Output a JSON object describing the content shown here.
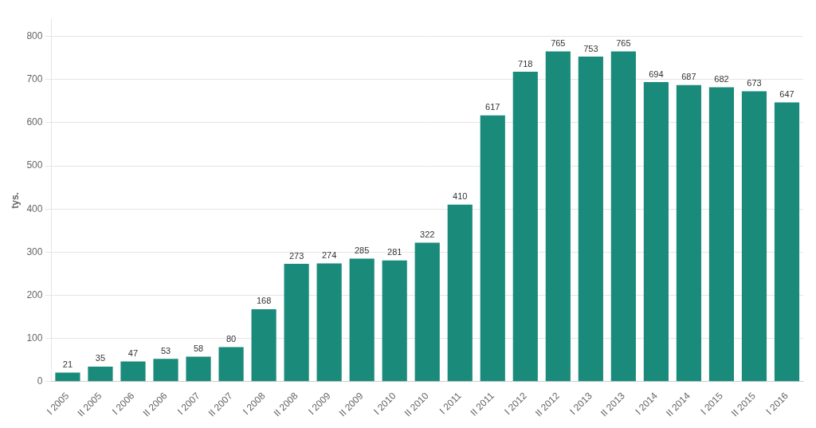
{
  "chart_data": {
    "type": "bar",
    "categories": [
      "I 2005",
      "II 2005",
      "I 2006",
      "II 2006",
      "I 2007",
      "II 2007",
      "I 2008",
      "II 2008",
      "I 2009",
      "II 2009",
      "I 2010",
      "II 2010",
      "I 2011",
      "II 2011",
      "I 2012",
      "II 2012",
      "I 2013",
      "II 2013",
      "I 2014",
      "II 2014",
      "I 2015",
      "II 2015",
      "I 2016"
    ],
    "values": [
      21,
      35,
      47,
      53,
      58,
      80,
      168,
      273,
      274,
      285,
      281,
      322,
      410,
      617,
      718,
      765,
      753,
      765,
      694,
      687,
      682,
      673,
      647
    ],
    "color": "#1a8a7a",
    "ylabel": "tys.",
    "ylim": [
      0,
      840
    ],
    "yticks": [
      0,
      100,
      200,
      300,
      400,
      500,
      600,
      700,
      800
    ],
    "grid": true,
    "data_labels": true
  }
}
